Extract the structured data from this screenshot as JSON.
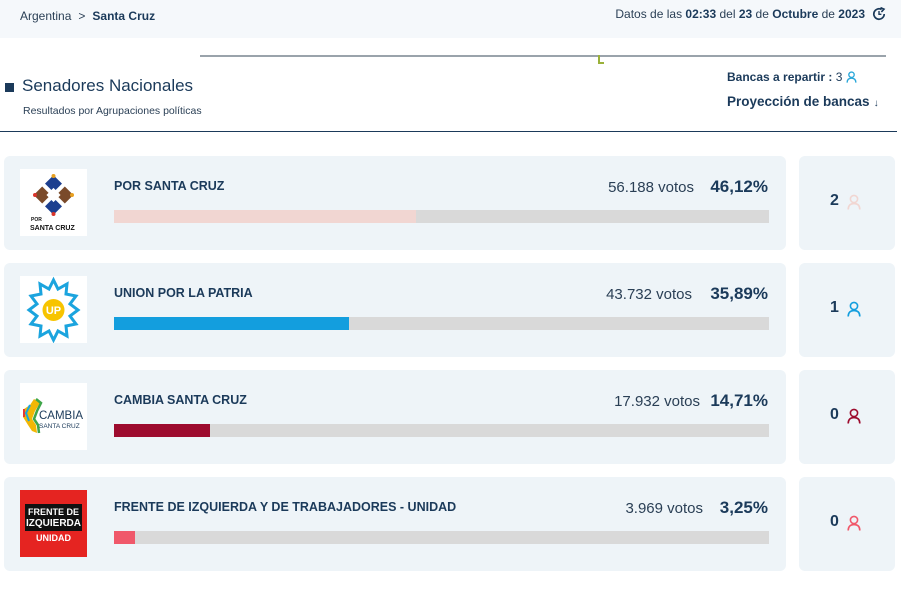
{
  "breadcrumb": {
    "root": "Argentina",
    "separator": ">",
    "current": "Santa Cruz"
  },
  "datetime": {
    "prefix": "Datos de las",
    "time": "02:33",
    "del": "del",
    "day": "23",
    "de1": "de",
    "month": "Octubre",
    "de2": "de",
    "year": "2023",
    "refresh_icon": "refresh-icon"
  },
  "section": {
    "title": "Senadores Nacionales",
    "subtitle": "Resultados por Agrupaciones políticas"
  },
  "bancas": {
    "label": "Bancas a repartir :",
    "value": "3",
    "icon": "person-icon",
    "icon_color": "#2aa7d9"
  },
  "projection": {
    "label": "Proyección de bancas",
    "arrow": "↓"
  },
  "parties": [
    {
      "name": "POR SANTA CRUZ",
      "votes": "56.188 votos",
      "percent": "46,12%",
      "share": 0.4612,
      "bar_color": "#f1d6d2",
      "seats": "2",
      "seat_icon_color": "#f1d6d2",
      "logo_text": [
        "POR",
        "SANTA CRUZ"
      ]
    },
    {
      "name": "UNION POR LA PATRIA",
      "votes": "43.732 votos",
      "percent": "35,89%",
      "share": 0.3589,
      "bar_color": "#139ede",
      "seats": "1",
      "seat_icon_color": "#139ede",
      "logo_text": [
        "UP"
      ]
    },
    {
      "name": "CAMBIA SANTA CRUZ",
      "votes": "17.932 votos",
      "percent": "14,71%",
      "share": 0.1471,
      "bar_color": "#9d0b2e",
      "seats": "0",
      "seat_icon_color": "#9d0b2e",
      "logo_text": [
        "CAMBIA",
        "SANTA CRUZ"
      ]
    },
    {
      "name": "FRENTE DE IZQUIERDA Y DE TRABAJADORES - UNIDAD",
      "votes": "3.969 votos",
      "percent": "3,25%",
      "share": 0.0325,
      "bar_color": "#f0586a",
      "seats": "0",
      "seat_icon_color": "#f0586a",
      "logo_text": [
        "FRENTE DE",
        "IZQUIERDA",
        "UNIDAD"
      ]
    }
  ]
}
